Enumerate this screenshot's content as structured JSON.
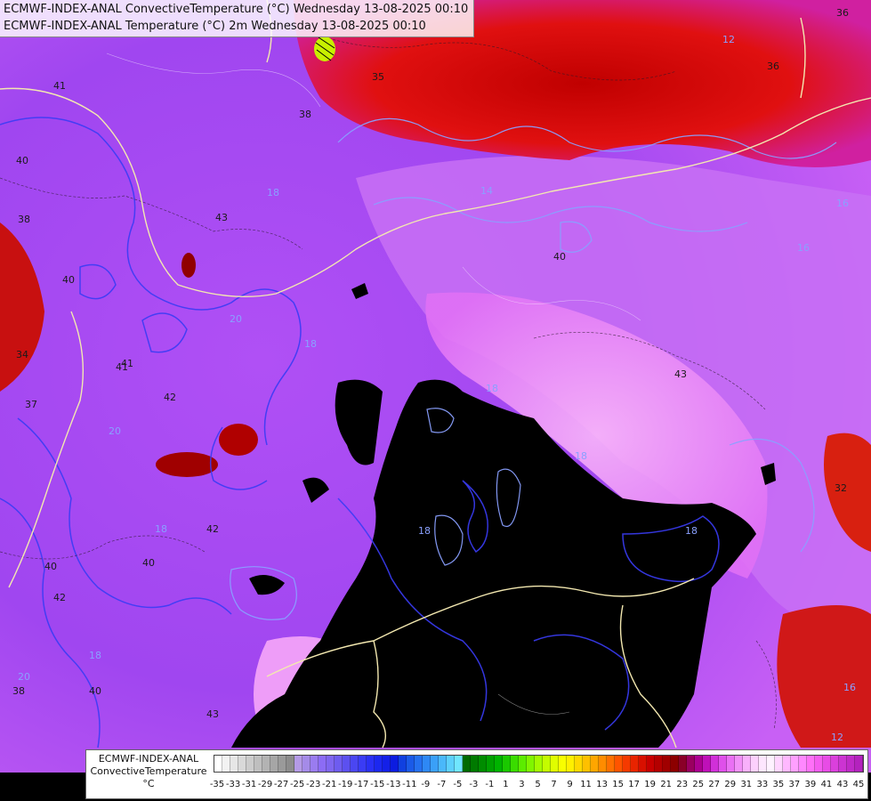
{
  "title": {
    "line1": "ECMWF-INDEX-ANAL ConvectiveTemperature (°C) Wednesday 13-08-2025 00:10",
    "line2": "ECMWF-INDEX-ANAL Temperature (°C) 2m Wednesday 13-08-2025 00:10"
  },
  "legend": {
    "line1": "ECMWF-INDEX-ANAL",
    "line2": "ConvectiveTemperature",
    "line3": "°C",
    "ticks": [
      "-35",
      "-33",
      "-31",
      "-29",
      "-27",
      "-25",
      "-23",
      "-21",
      "-19",
      "-17",
      "-15",
      "-13",
      "-11",
      "-9",
      "-7",
      "-5",
      "-3",
      "-1",
      "1",
      "3",
      "5",
      "7",
      "9",
      "11",
      "13",
      "15",
      "17",
      "19",
      "21",
      "23",
      "25",
      "27",
      "29",
      "31",
      "33",
      "35",
      "37",
      "39",
      "41",
      "43",
      "45"
    ],
    "colors": [
      "#ffffff",
      "#f2f2f2",
      "#e6e6e6",
      "#d9d9d9",
      "#cccccc",
      "#bfbfbf",
      "#b3b3b3",
      "#a6a6a6",
      "#9a9a9a",
      "#8c8c8c",
      "#b49ae6",
      "#a58be8",
      "#9a7cf0",
      "#8c6cf5",
      "#7f66f0",
      "#6e5cf0",
      "#5c50f0",
      "#4a46f2",
      "#3a3cf5",
      "#2a30f5",
      "#1c28f0",
      "#1420e8",
      "#0c1ce0",
      "#1040e0",
      "#1a5ae8",
      "#2470f0",
      "#2e88f5",
      "#3aa0f8",
      "#4ab8fa",
      "#5cd0fc",
      "#70e6fe",
      "#006a00",
      "#007a00",
      "#008c00",
      "#00a000",
      "#00b400",
      "#1ac800",
      "#3adc00",
      "#5cec00",
      "#80f500",
      "#a4fa00",
      "#c4fc00",
      "#e0fe00",
      "#f8fe00",
      "#ffef00",
      "#ffd800",
      "#ffc000",
      "#ffa600",
      "#ff8c00",
      "#ff7000",
      "#ff5400",
      "#f53a00",
      "#e82400",
      "#d81000",
      "#c80000",
      "#b40000",
      "#a00000",
      "#8c0000",
      "#8a0028",
      "#9a0060",
      "#ac0090",
      "#bf10b8",
      "#d030d8",
      "#df50ea",
      "#ea70f4",
      "#f290f8",
      "#f8b0fb",
      "#fcd0fd",
      "#fde6fe",
      "#fef2ff",
      "#ffd6ff",
      "#ffb8ff",
      "#ffa0ff",
      "#ff88ff",
      "#ff70f8",
      "#f55cf0",
      "#e84ce6",
      "#da40dc",
      "#cc34d2",
      "#c02ac8",
      "#b422be"
    ],
    "label_color": "#111111"
  },
  "map": {
    "contour_labels": [
      "38",
      "35",
      "41",
      "40",
      "38",
      "40",
      "43",
      "20",
      "18",
      "42",
      "41",
      "37",
      "20",
      "18",
      "42",
      "40",
      "42",
      "40",
      "38",
      "20",
      "40",
      "43",
      "18",
      "14",
      "40",
      "36",
      "12",
      "16",
      "16",
      "43",
      "18",
      "18",
      "18",
      "18",
      "36",
      "16",
      "12",
      "32",
      "34",
      "41",
      "18"
    ],
    "colors": {
      "cold_black": "#000000",
      "convective_violet": "#a040f0",
      "convective_magenta": "#e060f8",
      "convective_pink": "#f8a8f8",
      "hot_red": "#d81010",
      "dark_red": "#a00000",
      "contour_blue": "#3a3cf5",
      "contour_lightblue": "#8aa0ff",
      "border_cream": "#f3e8b0"
    }
  }
}
